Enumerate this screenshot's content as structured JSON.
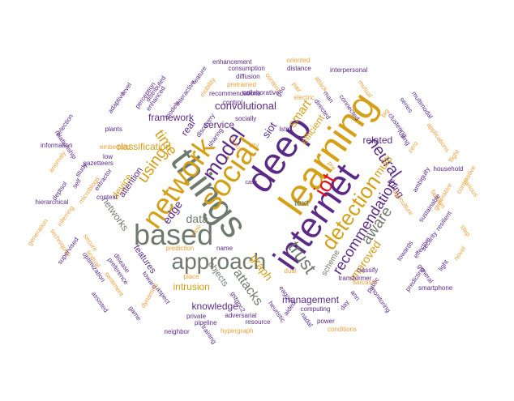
{
  "palette": {
    "purple": "#5b2a86",
    "gold": "#d4a017",
    "gray": "#6e7a6e",
    "orange": "#e8a03a",
    "red": "#e01020",
    "dark": "#555555"
  },
  "words": [
    {
      "t": "learning",
      "c": "gold"
    },
    {
      "t": "deep",
      "c": "purple"
    },
    {
      "t": "things",
      "c": "gray"
    },
    {
      "t": "social",
      "c": "gold"
    },
    {
      "t": "internet",
      "c": "purple"
    },
    {
      "t": "network",
      "c": "gold"
    },
    {
      "t": "based",
      "c": "gray"
    },
    {
      "t": "approach",
      "c": "gray"
    },
    {
      "t": "detection",
      "c": "gold"
    },
    {
      "t": "iot",
      "c": "red"
    },
    {
      "t": "model",
      "c": "purple"
    },
    {
      "t": "trust",
      "c": "gray"
    },
    {
      "t": "recommendation",
      "c": "purple"
    },
    {
      "t": "using",
      "c": "gold"
    },
    {
      "t": "neural",
      "c": "purple"
    },
    {
      "t": "aware",
      "c": "gray"
    },
    {
      "t": "attacks",
      "c": "gray"
    },
    {
      "t": "convolutional",
      "c": "purple"
    },
    {
      "t": "time",
      "c": "gold"
    },
    {
      "t": "data",
      "c": "gray"
    },
    {
      "t": "edge",
      "c": "purple"
    },
    {
      "t": "siot",
      "c": "purple"
    },
    {
      "t": "smart",
      "c": "gold"
    },
    {
      "t": "framework",
      "c": "purple"
    },
    {
      "t": "classification",
      "c": "gold"
    },
    {
      "t": "service",
      "c": "purple"
    },
    {
      "t": "real",
      "c": "purple"
    },
    {
      "t": "efficient",
      "c": "gold"
    },
    {
      "t": "graph",
      "c": "gold"
    },
    {
      "t": "multi",
      "c": "gold"
    },
    {
      "t": "related",
      "c": "purple"
    },
    {
      "t": "thing",
      "c": "purple"
    },
    {
      "t": "improved",
      "c": "gold"
    },
    {
      "t": "management",
      "c": "purple"
    },
    {
      "t": "knowledge",
      "c": "purple"
    },
    {
      "t": "intrusion",
      "c": "gold"
    },
    {
      "t": "objects",
      "c": "gray"
    },
    {
      "t": "features",
      "c": "purple"
    },
    {
      "t": "networks",
      "c": "gray"
    },
    {
      "t": "device",
      "c": "gold"
    },
    {
      "t": "attention",
      "c": "purple"
    },
    {
      "t": "text",
      "c": "gray"
    },
    {
      "t": "scheme",
      "c": "gray"
    },
    {
      "t": "enhancement",
      "c": "purple"
    },
    {
      "t": "oriented",
      "c": "orange"
    },
    {
      "t": "consumption",
      "c": "purple"
    },
    {
      "t": "level",
      "c": "purple"
    },
    {
      "t": "feature",
      "c": "purple"
    },
    {
      "t": "diffusion",
      "c": "purple"
    },
    {
      "t": "distance",
      "c": "purple"
    },
    {
      "t": "interpersonal",
      "c": "purple"
    },
    {
      "t": "pretrained",
      "c": "orange"
    },
    {
      "t": "collaborative",
      "c": "purple"
    },
    {
      "t": "recommendations",
      "c": "purple"
    },
    {
      "t": "control",
      "c": "purple"
    },
    {
      "t": "socially",
      "c": "purple"
    },
    {
      "t": "content",
      "c": "orange"
    },
    {
      "t": "pair",
      "c": "orange"
    },
    {
      "t": "attack",
      "c": "orange"
    },
    {
      "t": "electric",
      "c": "orange"
    },
    {
      "t": "man",
      "c": "purple"
    },
    {
      "t": "directed",
      "c": "purple"
    },
    {
      "t": "connected",
      "c": "purple"
    },
    {
      "t": "mutual",
      "c": "orange"
    },
    {
      "t": "big",
      "c": "orange"
    },
    {
      "t": "clustering",
      "c": "purple"
    },
    {
      "t": "series",
      "c": "purple"
    },
    {
      "t": "multimodal",
      "c": "purple"
    },
    {
      "t": "applications",
      "c": "orange"
    },
    {
      "t": "flight",
      "c": "orange"
    },
    {
      "t": "fusing",
      "c": "purple"
    },
    {
      "t": "zero",
      "c": "orange"
    },
    {
      "t": "household",
      "c": "purple"
    },
    {
      "t": "various",
      "c": "orange"
    },
    {
      "t": "contrastive",
      "c": "orange"
    },
    {
      "t": "ambiguity",
      "c": "purple"
    },
    {
      "t": "fashion",
      "c": "orange"
    },
    {
      "t": "generative",
      "c": "orange"
    },
    {
      "t": "sustainable",
      "c": "purple"
    },
    {
      "t": "resilient",
      "c": "purple"
    },
    {
      "t": "step",
      "c": "orange"
    },
    {
      "t": "security",
      "c": "purple"
    },
    {
      "t": "effective",
      "c": "purple"
    },
    {
      "t": "novel",
      "c": "orange"
    },
    {
      "t": "towards",
      "c": "purple"
    },
    {
      "t": "light",
      "c": "purple"
    },
    {
      "t": "general",
      "c": "purple"
    },
    {
      "t": "predicting",
      "c": "purple"
    },
    {
      "t": "smartphone",
      "c": "purple"
    },
    {
      "t": "monitoring",
      "c": "purple"
    },
    {
      "t": "public",
      "c": "purple"
    },
    {
      "t": "classify",
      "c": "purple"
    },
    {
      "t": "transformer",
      "c": "purple"
    },
    {
      "t": "sarcasm",
      "c": "orange"
    },
    {
      "t": "ann",
      "c": "purple"
    },
    {
      "t": "day",
      "c": "purple"
    },
    {
      "t": "computing",
      "c": "purple"
    },
    {
      "t": "power",
      "c": "purple"
    },
    {
      "t": "conditions",
      "c": "orange"
    },
    {
      "t": "nadal",
      "c": "purple"
    },
    {
      "t": "aided",
      "c": "purple"
    },
    {
      "t": "heuristic",
      "c": "purple"
    },
    {
      "t": "eagcn",
      "c": "purple"
    },
    {
      "t": "gstgnc2",
      "c": "purple"
    },
    {
      "t": "dual",
      "c": "orange"
    },
    {
      "t": "adversarial",
      "c": "purple"
    },
    {
      "t": "private",
      "c": "purple"
    },
    {
      "t": "pipeline",
      "c": "purple"
    },
    {
      "t": "resource",
      "c": "purple"
    },
    {
      "t": "hypergraph",
      "c": "orange"
    },
    {
      "t": "training",
      "c": "purple"
    },
    {
      "t": "neighbor",
      "c": "purple"
    },
    {
      "t": "place",
      "c": "orange"
    },
    {
      "t": "name",
      "c": "purple"
    },
    {
      "t": "prediction",
      "c": "orange"
    },
    {
      "t": "view",
      "c": "orange"
    },
    {
      "t": "aspect",
      "c": "purple"
    },
    {
      "t": "toward",
      "c": "purple"
    },
    {
      "t": "game",
      "c": "purple"
    },
    {
      "t": "dynamics",
      "c": "orange"
    },
    {
      "t": "preference",
      "c": "purple"
    },
    {
      "t": "disease",
      "c": "purple"
    },
    {
      "t": "sentiment",
      "c": "orange"
    },
    {
      "t": "assisted",
      "c": "purple"
    },
    {
      "t": "optimization",
      "c": "purple"
    },
    {
      "t": "textual",
      "c": "orange"
    },
    {
      "t": "secure",
      "c": "orange"
    },
    {
      "t": "techniques",
      "c": "orange"
    },
    {
      "t": "supervised",
      "c": "purple"
    },
    {
      "t": "generation",
      "c": "orange"
    },
    {
      "t": "inferring",
      "c": "orange"
    },
    {
      "t": "hierarchical",
      "c": "purple"
    },
    {
      "t": "deptsol",
      "c": "purple"
    },
    {
      "t": "anomaly",
      "c": "orange"
    },
    {
      "t": "information",
      "c": "purple"
    },
    {
      "t": "selection",
      "c": "purple"
    },
    {
      "t": "relationship",
      "c": "purple"
    },
    {
      "t": "study",
      "c": "purple"
    },
    {
      "t": "self",
      "c": "purple"
    },
    {
      "t": "microblogs",
      "c": "orange"
    },
    {
      "t": "extractor",
      "c": "purple"
    },
    {
      "t": "context",
      "c": "purple"
    },
    {
      "t": "plants",
      "c": "purple"
    },
    {
      "t": "low",
      "c": "purple"
    },
    {
      "t": "gazetteers",
      "c": "purple"
    },
    {
      "t": "embedded",
      "c": "orange"
    },
    {
      "t": "adaptive",
      "c": "purple"
    },
    {
      "t": "perception",
      "c": "purple"
    },
    {
      "t": "distributed",
      "c": "purple"
    },
    {
      "t": "enhanced",
      "c": "purple"
    },
    {
      "t": "interactive",
      "c": "purple"
    },
    {
      "t": "models",
      "c": "purple"
    },
    {
      "t": "mobility",
      "c": "orange"
    },
    {
      "t": "discovery",
      "c": "purple"
    },
    {
      "t": "sharing",
      "c": "purple"
    },
    {
      "t": "chaos",
      "c": "orange"
    },
    {
      "t": "city",
      "c": "orange"
    },
    {
      "t": "lstm",
      "c": "purple"
    },
    {
      "t": "geo",
      "c": "purple"
    },
    {
      "t": "pre",
      "c": "orange"
    },
    {
      "t": "agriculture",
      "c": "orange"
    },
    {
      "t": "case",
      "c": "purple"
    },
    {
      "t": "item",
      "c": "orange"
    },
    {
      "t": "q",
      "c": "purple"
    }
  ]
}
